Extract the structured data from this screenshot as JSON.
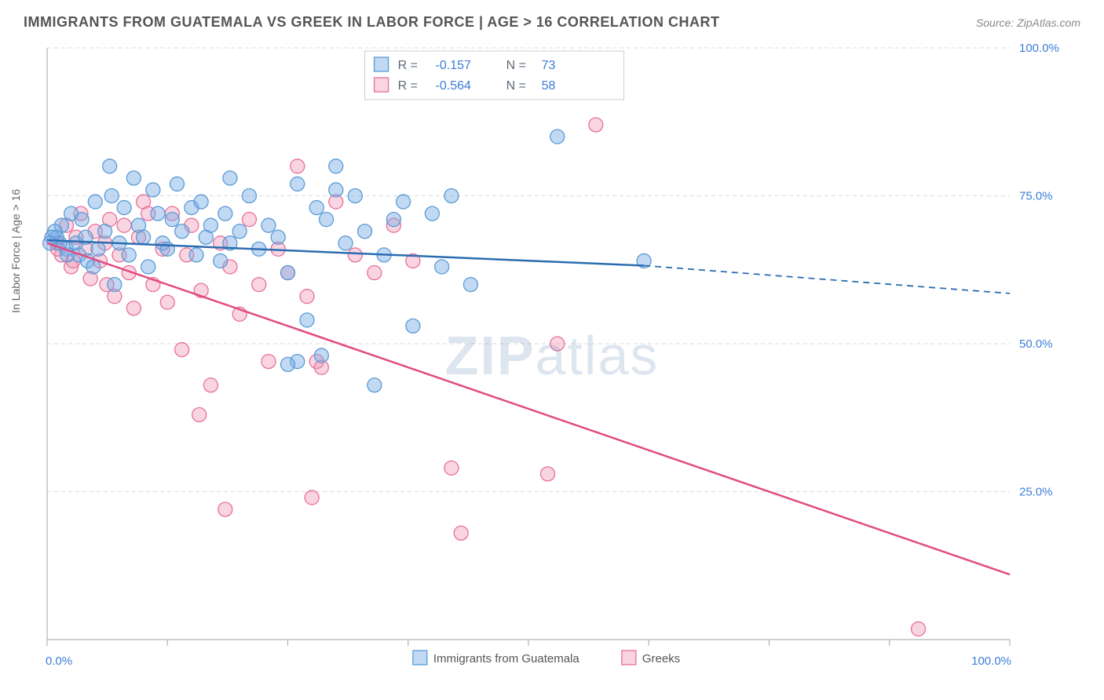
{
  "header": {
    "title": "IMMIGRANTS FROM GUATEMALA VS GREEK IN LABOR FORCE | AGE > 16 CORRELATION CHART",
    "source": "Source: ZipAtlas.com"
  },
  "watermark": "ZIPatlas",
  "chart": {
    "type": "scatter",
    "background_color": "#ffffff",
    "plot_border_color": "#aeb4bb",
    "grid_color": "#d7d9dc",
    "grid_dash": "5,4",
    "xlabel": "",
    "ylabel": "In Labor Force | Age > 16",
    "label_fontsize": 14,
    "label_color": "#666666",
    "xlim": [
      0,
      100
    ],
    "ylim": [
      0,
      100
    ],
    "xticks": [
      0,
      12.5,
      25,
      37.5,
      50,
      62.5,
      75,
      87.5,
      100
    ],
    "yticks": [
      25,
      50,
      75,
      100
    ],
    "xtick_labels": {
      "0": "0.0%",
      "100": "100.0%"
    },
    "ytick_labels": {
      "25": "25.0%",
      "50": "50.0%",
      "75": "75.0%",
      "100": "100.0%"
    },
    "tick_label_color": "#3b7dd8",
    "tick_label_fontsize": 15,
    "tick_mark_color": "#aeb4bb",
    "series": [
      {
        "name": "Immigrants from Guatemala",
        "color_fill": "rgba(120,170,230,0.45)",
        "color_stroke": "#5a9bd5",
        "line_color": "#2b6cb0",
        "line_width": 2.5,
        "marker_radius": 9,
        "R": "-0.157",
        "N": "73",
        "points": [
          [
            1,
            68
          ],
          [
            1.5,
            70
          ],
          [
            2,
            66
          ],
          [
            2.5,
            72
          ],
          [
            3,
            67
          ],
          [
            3.3,
            65
          ],
          [
            3.6,
            71
          ],
          [
            4,
            68
          ],
          [
            4.2,
            64
          ],
          [
            5,
            74
          ],
          [
            5.3,
            66
          ],
          [
            6,
            69
          ],
          [
            6.5,
            80
          ],
          [
            7,
            60
          ],
          [
            7.5,
            67
          ],
          [
            8,
            73
          ],
          [
            8.5,
            65
          ],
          [
            9,
            78
          ],
          [
            9.5,
            70
          ],
          [
            10,
            68
          ],
          [
            10.5,
            63
          ],
          [
            11,
            76
          ],
          [
            11.5,
            72
          ],
          [
            12,
            67
          ],
          [
            12.5,
            66
          ],
          [
            13,
            71
          ],
          [
            13.5,
            77
          ],
          [
            14,
            69
          ],
          [
            15,
            73
          ],
          [
            15.5,
            65
          ],
          [
            16,
            74
          ],
          [
            16.5,
            68
          ],
          [
            17,
            70
          ],
          [
            18,
            64
          ],
          [
            18.5,
            72
          ],
          [
            19,
            67
          ],
          [
            20,
            69
          ],
          [
            21,
            75
          ],
          [
            22,
            66
          ],
          [
            23,
            70
          ],
          [
            24,
            68
          ],
          [
            25,
            62
          ],
          [
            26,
            77
          ],
          [
            27,
            54
          ],
          [
            28,
            73
          ],
          [
            28.5,
            48
          ],
          [
            29,
            71
          ],
          [
            30,
            76
          ],
          [
            31,
            67
          ],
          [
            32,
            75
          ],
          [
            33,
            69
          ],
          [
            34,
            43
          ],
          [
            35,
            65
          ],
          [
            36,
            71
          ],
          [
            38,
            53
          ],
          [
            40,
            72
          ],
          [
            41,
            63
          ],
          [
            42,
            75
          ],
          [
            44,
            60
          ],
          [
            62,
            64
          ],
          [
            53,
            85
          ],
          [
            30,
            80
          ],
          [
            26,
            47
          ],
          [
            25,
            46.5
          ],
          [
            19,
            78
          ],
          [
            6.7,
            75
          ],
          [
            4.8,
            63
          ],
          [
            2.1,
            65
          ],
          [
            1.3,
            67
          ],
          [
            0.8,
            69
          ],
          [
            0.5,
            68
          ],
          [
            0.3,
            67
          ],
          [
            37,
            74
          ]
        ],
        "trend_start": [
          0,
          67.5
        ],
        "trend_solid_end": [
          62,
          63.2
        ],
        "trend_dash_end": [
          100,
          58.5
        ]
      },
      {
        "name": "Greeks",
        "color_fill": "rgba(240,150,180,0.40)",
        "color_stroke": "#e86f9a",
        "line_color": "#e14b82",
        "line_width": 2.5,
        "marker_radius": 9,
        "R": "-0.564",
        "N": "58",
        "points": [
          [
            1,
            67
          ],
          [
            1.5,
            65
          ],
          [
            2,
            70
          ],
          [
            2.5,
            63
          ],
          [
            3,
            68
          ],
          [
            3.5,
            72
          ],
          [
            4,
            66
          ],
          [
            4.5,
            61
          ],
          [
            5,
            69
          ],
          [
            5.5,
            64
          ],
          [
            6,
            67
          ],
          [
            6.5,
            71
          ],
          [
            7,
            58
          ],
          [
            7.5,
            65
          ],
          [
            8,
            70
          ],
          [
            8.5,
            62
          ],
          [
            9,
            56
          ],
          [
            9.5,
            68
          ],
          [
            10,
            74
          ],
          [
            11,
            60
          ],
          [
            12,
            66
          ],
          [
            12.5,
            57
          ],
          [
            13,
            72
          ],
          [
            14,
            49
          ],
          [
            14.5,
            65
          ],
          [
            15,
            70
          ],
          [
            15.8,
            38
          ],
          [
            16,
            59
          ],
          [
            17,
            43
          ],
          [
            18,
            67
          ],
          [
            18.5,
            22
          ],
          [
            19,
            63
          ],
          [
            20,
            55
          ],
          [
            21,
            71
          ],
          [
            22,
            60
          ],
          [
            23,
            47
          ],
          [
            24,
            66
          ],
          [
            25,
            62
          ],
          [
            26,
            80
          ],
          [
            27,
            58
          ],
          [
            27.5,
            24
          ],
          [
            28,
            47
          ],
          [
            28.5,
            46
          ],
          [
            30,
            74
          ],
          [
            32,
            65
          ],
          [
            34,
            62
          ],
          [
            36,
            70
          ],
          [
            38,
            64
          ],
          [
            42,
            29
          ],
          [
            43,
            18
          ],
          [
            52,
            28
          ],
          [
            57,
            87
          ],
          [
            53,
            50
          ],
          [
            90.5,
            1.8
          ],
          [
            10.5,
            72
          ],
          [
            6.2,
            60
          ],
          [
            2.7,
            64
          ],
          [
            1.1,
            66
          ]
        ],
        "trend_start": [
          0,
          67
        ],
        "trend_solid_end": [
          100,
          11
        ],
        "trend_dash_end": [
          100,
          11
        ]
      }
    ],
    "legend_top": {
      "box_stroke": "#c9ccd0",
      "text_color_label": "#5f6b7a",
      "text_color_value": "#3b7dd8",
      "fontsize": 16
    },
    "legend_bottom": {
      "fontsize": 15,
      "text_color": "#555555"
    }
  }
}
